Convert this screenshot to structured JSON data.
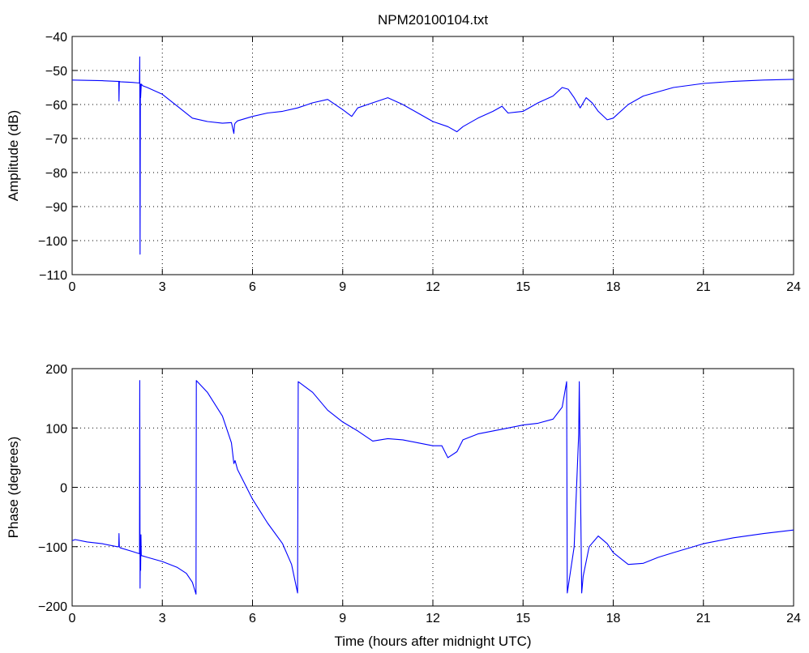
{
  "chart_data": [
    {
      "type": "line",
      "title": "NPM20100104.txt",
      "xlabel": "",
      "ylabel": "Amplitude (dB)",
      "xlim": [
        0,
        24
      ],
      "ylim": [
        -110,
        -40
      ],
      "xticks": [
        0,
        3,
        6,
        9,
        12,
        15,
        18,
        21,
        24
      ],
      "yticks": [
        -110,
        -100,
        -90,
        -80,
        -70,
        -60,
        -50,
        -40
      ],
      "xtick_labels": [
        "0",
        "3",
        "6",
        "9",
        "12",
        "15",
        "18",
        "21",
        "24"
      ],
      "ytick_labels": [
        "−110",
        "−100",
        "−90",
        "−80",
        "−70",
        "−60",
        "−50",
        "−40"
      ],
      "grid": true,
      "series": [
        {
          "color": "#0000ff",
          "x": [
            0,
            0.5,
            1.0,
            1.5,
            1.55,
            1.56,
            1.57,
            1.6,
            2.0,
            2.24,
            2.25,
            2.26,
            2.27,
            2.28,
            2.3,
            2.35,
            2.5,
            3.0,
            3.5,
            4.0,
            4.5,
            5.0,
            5.3,
            5.38,
            5.4,
            5.42,
            5.5,
            6.0,
            6.5,
            7.0,
            7.5,
            8.0,
            8.5,
            9.0,
            9.3,
            9.5,
            10.0,
            10.5,
            11.0,
            11.5,
            12.0,
            12.5,
            12.8,
            13.0,
            13.5,
            14.0,
            14.3,
            14.5,
            15.0,
            15.5,
            16.0,
            16.3,
            16.5,
            16.7,
            16.9,
            17.1,
            17.3,
            17.5,
            17.8,
            18.0,
            18.5,
            19.0,
            20.0,
            21.0,
            22.0,
            23.0,
            24.0
          ],
          "values": [
            -52.8,
            -52.9,
            -53.0,
            -53.2,
            -53.2,
            -59.0,
            -53.2,
            -53.3,
            -53.5,
            -53.7,
            -46.0,
            -104.0,
            -54.0,
            -58.0,
            -54.0,
            -54.5,
            -55.0,
            -57.0,
            -60.5,
            -64.0,
            -65.0,
            -65.5,
            -65.3,
            -68.5,
            -66.0,
            -65.5,
            -64.8,
            -63.5,
            -62.5,
            -62.0,
            -61.0,
            -59.5,
            -58.5,
            -61.5,
            -63.5,
            -61.0,
            -59.5,
            -58.0,
            -60.0,
            -62.5,
            -65.0,
            -66.5,
            -68.0,
            -66.5,
            -64.0,
            -62.0,
            -60.5,
            -62.5,
            -62.0,
            -59.5,
            -57.5,
            -55.0,
            -55.5,
            -58.0,
            -61.0,
            -58.0,
            -59.5,
            -62.0,
            -64.5,
            -64.0,
            -60.0,
            -57.5,
            -55.0,
            -53.8,
            -53.2,
            -52.8,
            -52.6
          ]
        }
      ]
    },
    {
      "type": "line",
      "title": "",
      "xlabel": "Time (hours after midnight UTC)",
      "ylabel": "Phase (degrees)",
      "xlim": [
        0,
        24
      ],
      "ylim": [
        -200,
        200
      ],
      "xticks": [
        0,
        3,
        6,
        9,
        12,
        15,
        18,
        21,
        24
      ],
      "yticks": [
        -200,
        -100,
        0,
        100,
        200
      ],
      "xtick_labels": [
        "0",
        "3",
        "6",
        "9",
        "12",
        "15",
        "18",
        "21",
        "24"
      ],
      "ytick_labels": [
        "−200",
        "−100",
        "0",
        "100",
        "200"
      ],
      "grid": true,
      "series": [
        {
          "color": "#0000ff",
          "x": [
            0,
            0.1,
            0.5,
            1.0,
            1.5,
            1.55,
            1.56,
            1.57,
            1.6,
            2.0,
            2.24,
            2.25,
            2.26,
            2.27,
            2.28,
            2.29,
            2.3,
            2.5,
            3.0,
            3.5,
            3.8,
            4.0,
            4.12,
            4.13,
            4.5,
            5.0,
            5.3,
            5.38,
            5.42,
            5.5,
            6.0,
            6.5,
            7.0,
            7.3,
            7.5,
            7.52,
            8.0,
            8.5,
            9.0,
            9.5,
            10.0,
            10.5,
            11.0,
            11.5,
            12.0,
            12.3,
            12.5,
            12.8,
            13.0,
            13.5,
            14.0,
            14.5,
            15.0,
            15.5,
            16.0,
            16.3,
            16.45,
            16.47,
            16.7,
            16.85,
            16.87,
            16.95,
            17.0,
            17.2,
            17.5,
            17.8,
            18.0,
            18.5,
            19.0,
            19.5,
            20.0,
            21.0,
            22.0,
            23.0,
            24.0
          ],
          "values": [
            -90,
            -88,
            -92,
            -95,
            -100,
            -100,
            -78,
            -100,
            -102,
            -108,
            -112,
            180,
            -170,
            -95,
            -140,
            -80,
            -115,
            -118,
            -125,
            -135,
            -145,
            -160,
            -180,
            180,
            160,
            120,
            75,
            40,
            45,
            30,
            -20,
            -60,
            -95,
            -130,
            -178,
            178,
            160,
            130,
            110,
            95,
            78,
            82,
            80,
            75,
            70,
            70,
            50,
            60,
            80,
            90,
            95,
            100,
            105,
            108,
            115,
            135,
            178,
            -178,
            -100,
            90,
            178,
            -178,
            -150,
            -100,
            -82,
            -95,
            -110,
            -130,
            -128,
            -118,
            -110,
            -95,
            -85,
            -78,
            -72
          ]
        }
      ]
    }
  ]
}
